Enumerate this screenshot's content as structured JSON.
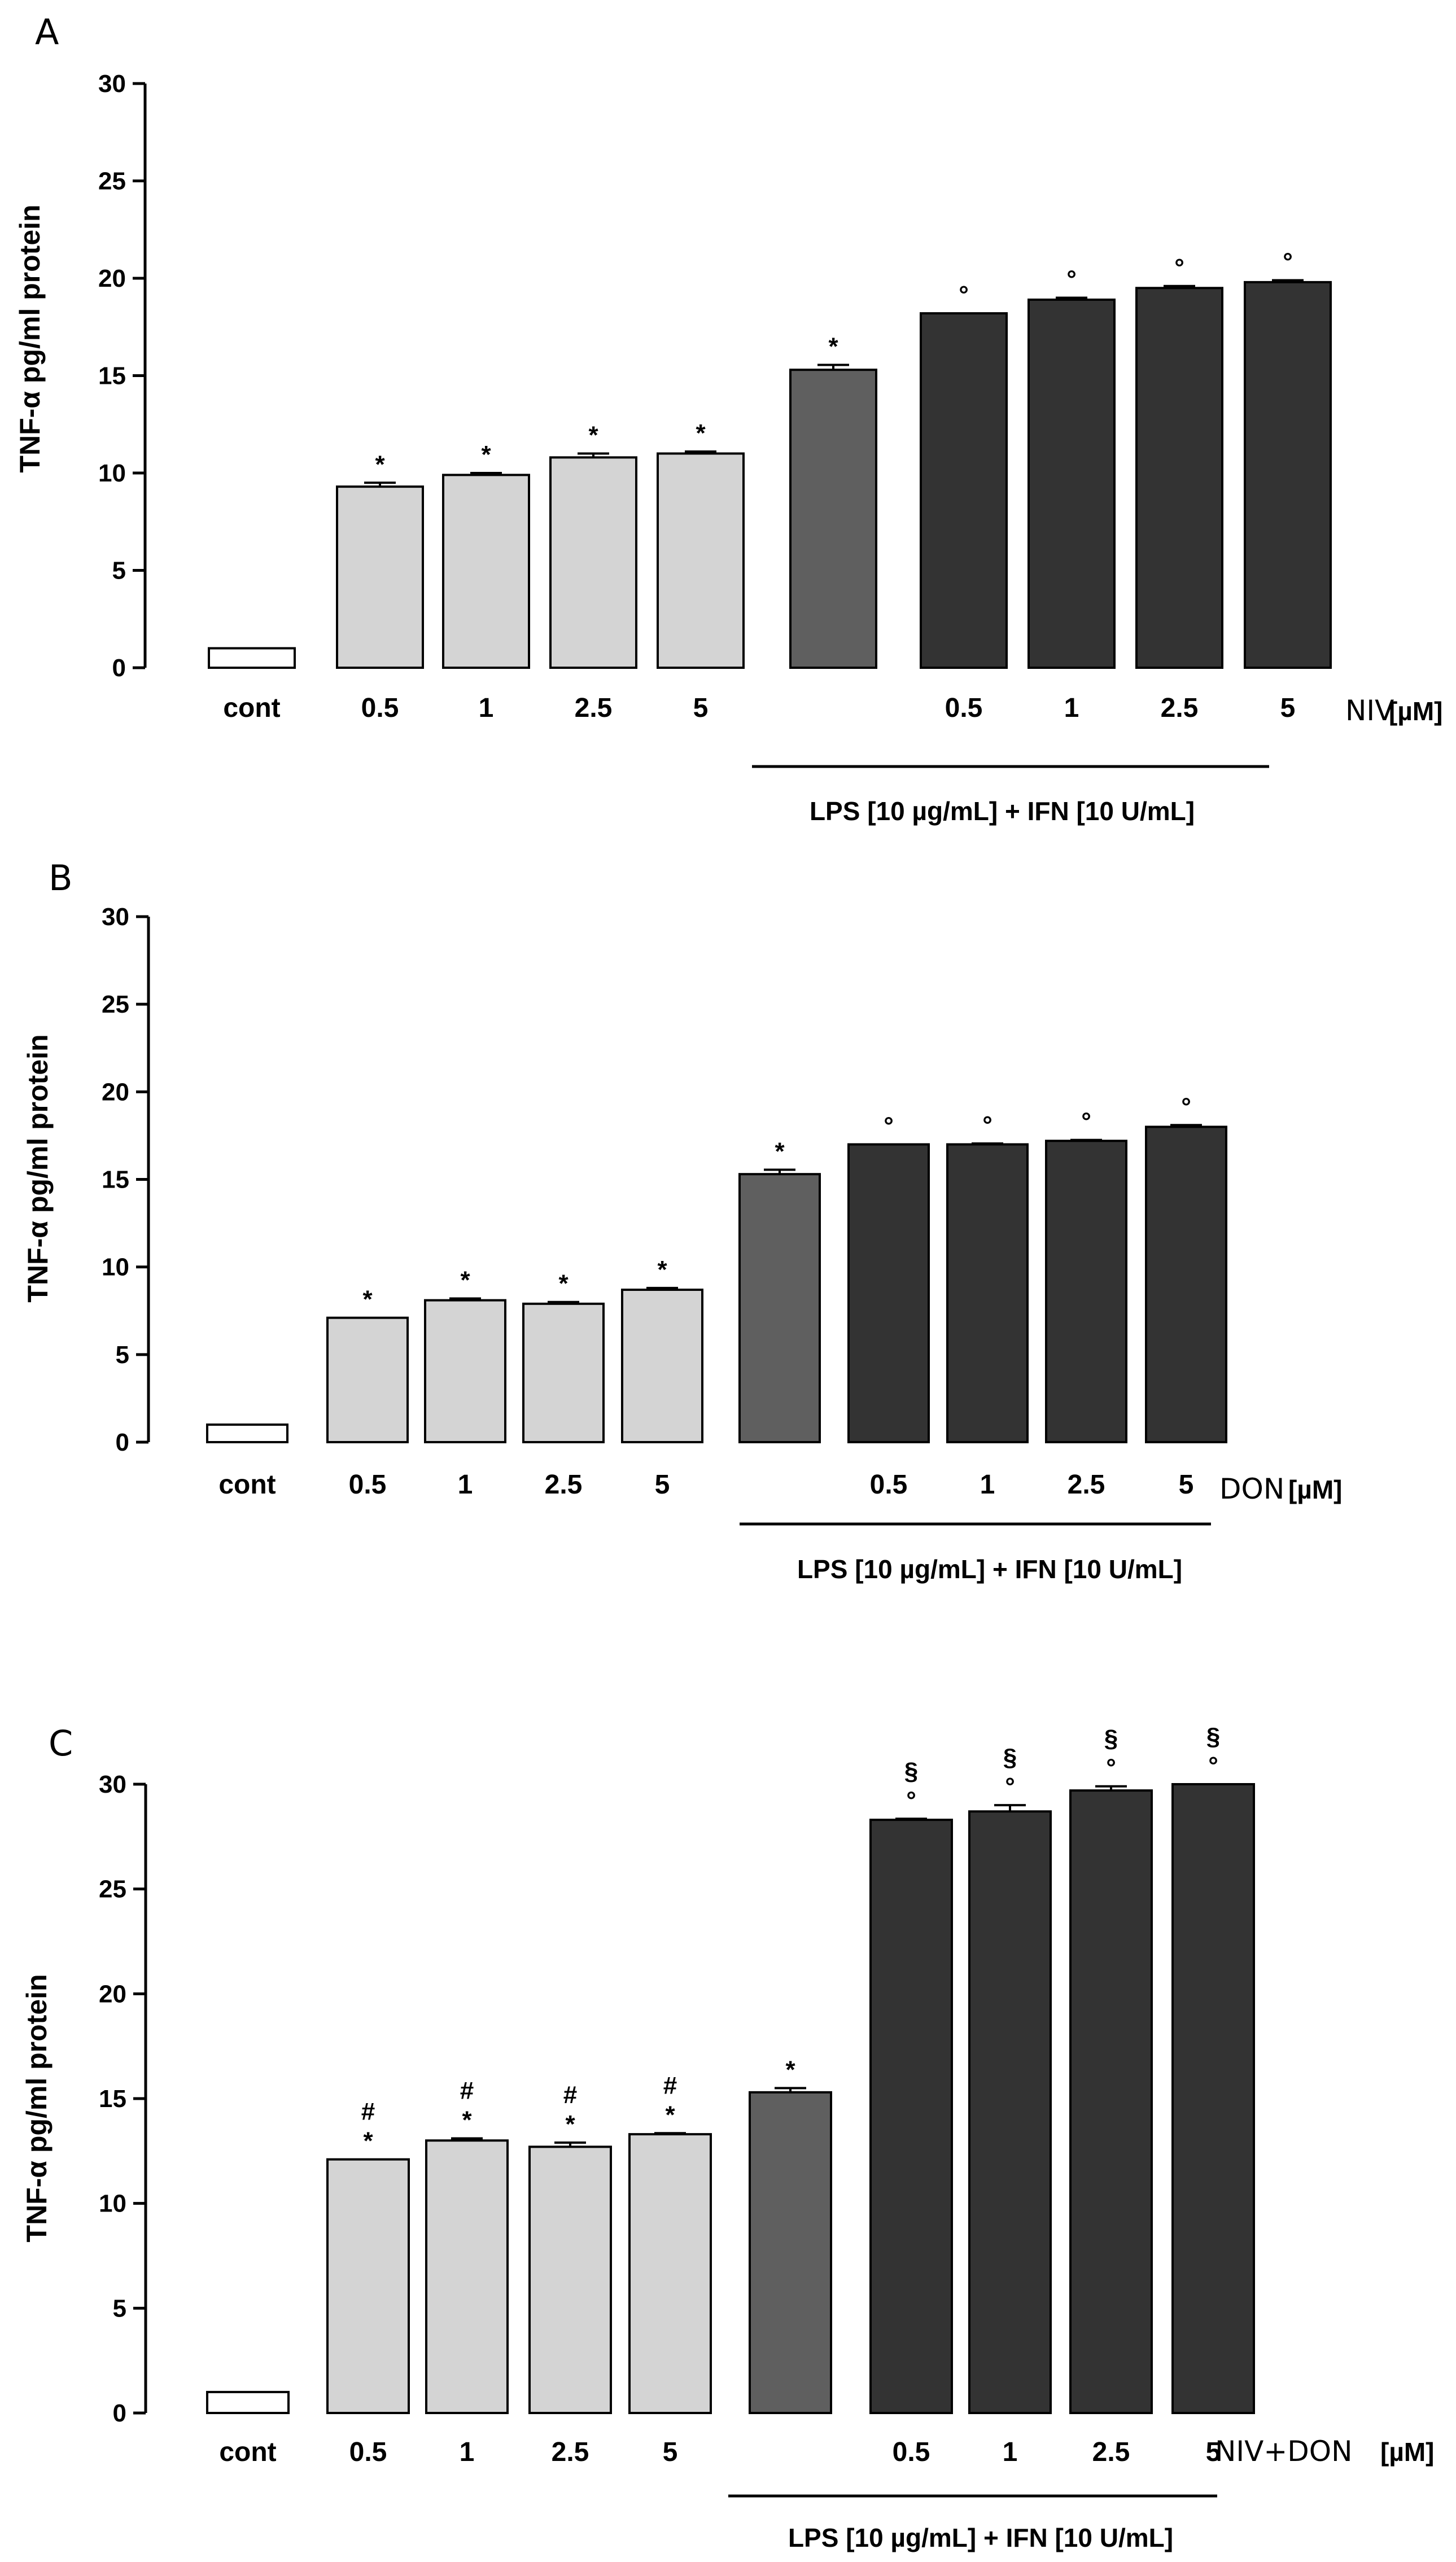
{
  "chart_data": [
    {
      "type": "bar",
      "panel": "A",
      "ylabel": "TNF-α pg/ml protein",
      "ylim": [
        0,
        30
      ],
      "yticks": [
        "0",
        "5",
        "10",
        "15",
        "20",
        "25",
        "30"
      ],
      "categories": [
        "cont",
        "0.5",
        "1",
        "2.5",
        "5",
        "",
        "0.5",
        "1",
        "2.5",
        "5"
      ],
      "values": [
        1.0,
        9.3,
        9.9,
        10.8,
        11.0,
        15.3,
        18.2,
        18.9,
        19.5,
        19.8
      ],
      "errors": [
        0,
        0.2,
        0.1,
        0.2,
        0.1,
        0.25,
        0.0,
        0.1,
        0.1,
        0.1
      ],
      "annotations": [
        "",
        "*",
        "*",
        "*",
        "*",
        "*",
        "°",
        "°",
        "°",
        "°"
      ],
      "compound_label": "NIV",
      "unit_label": "[µM]",
      "treatment_label": "LPS [10 µg/mL] + IFN [10 U/mL]"
    },
    {
      "type": "bar",
      "panel": "B",
      "ylabel": "TNF-α pg/ml protein",
      "ylim": [
        0,
        30
      ],
      "yticks": [
        "0",
        "5",
        "10",
        "15",
        "20",
        "25",
        "30"
      ],
      "categories": [
        "cont",
        "0.5",
        "1",
        "2.5",
        "5",
        "",
        "0.5",
        "1",
        "2.5",
        "5"
      ],
      "values": [
        1.0,
        7.1,
        8.1,
        7.9,
        8.7,
        15.3,
        17.0,
        17.0,
        17.2,
        18.0
      ],
      "errors": [
        0,
        0.0,
        0.1,
        0.1,
        0.1,
        0.25,
        0.0,
        0.05,
        0.05,
        0.1
      ],
      "annotations": [
        "",
        "*",
        "*",
        "*",
        "*",
        "*",
        "°",
        "°",
        "°",
        "°"
      ],
      "compound_label": "DON",
      "unit_label": "[µM]",
      "treatment_label": "LPS [10 µg/mL] + IFN [10 U/mL]"
    },
    {
      "type": "bar",
      "panel": "C",
      "ylabel": "TNF-α pg/ml protein",
      "ylim": [
        0,
        30
      ],
      "yticks": [
        "0",
        "5",
        "10",
        "15",
        "20",
        "25",
        "30"
      ],
      "categories": [
        "cont",
        "0.5",
        "1",
        "2.5",
        "5",
        "",
        "0.5",
        "1",
        "2.5",
        "5"
      ],
      "values": [
        1.0,
        12.1,
        13.0,
        12.7,
        13.3,
        15.3,
        28.3,
        28.7,
        29.7,
        30.0
      ],
      "errors": [
        0,
        0.0,
        0.1,
        0.2,
        0.05,
        0.2,
        0.05,
        0.3,
        0.2,
        0.0
      ],
      "annotations": [
        "",
        "*",
        "*",
        "*",
        "*",
        "*",
        "°",
        "°",
        "°",
        "°"
      ],
      "annotations2": [
        "",
        "#",
        "#",
        "#",
        "#",
        "",
        "§",
        "§",
        "§",
        "§"
      ],
      "compound_label": "NIV+DON",
      "unit_label": "[µM]",
      "treatment_label": "LPS [10 µg/mL] + IFN [10 U/mL]"
    }
  ],
  "colors": {
    "control": "#ffffff",
    "toxin_alone": "#d4d4d4",
    "lps_ifn": "#5f5f5f",
    "lps_ifn_toxin": "#333333",
    "outline": "#000000"
  }
}
